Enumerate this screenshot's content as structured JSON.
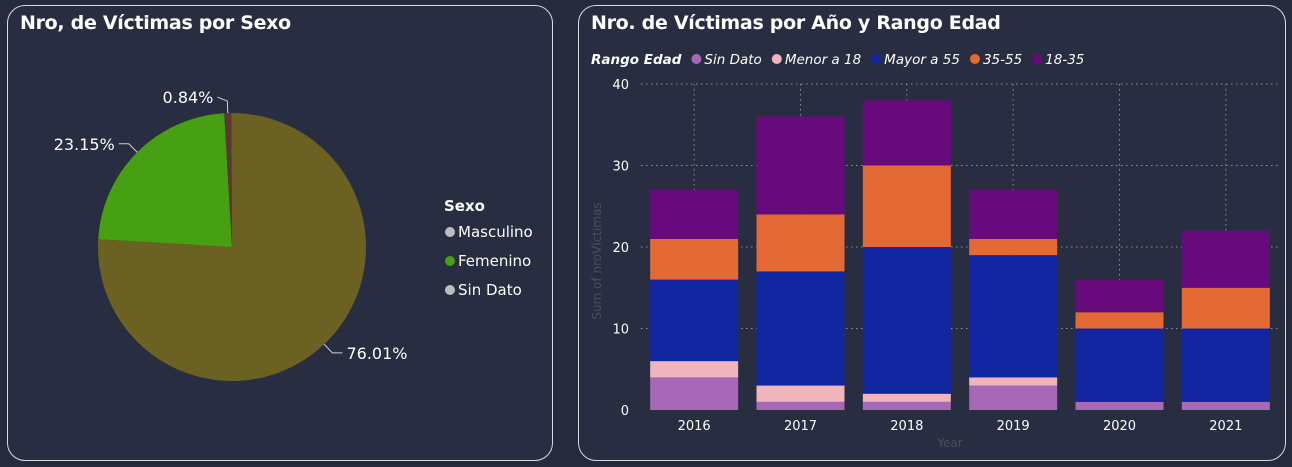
{
  "left_panel": {
    "title": "Nro, de Víctimas por Sexo"
  },
  "right_panel": {
    "title": "Nro. de Víctimas por Año y Rango Edad"
  },
  "colors": {
    "background": "#262a3c",
    "panel_border": "#d8dbe4",
    "masculino": "#6b6122",
    "femenino": "#46a012",
    "sin_dato_sexo": "#5a3a30",
    "sin_dato": "#a868b8",
    "menor_18": "#f0b4bc",
    "mayor_55": "#1326a2",
    "r35_55": "#e46a35",
    "r18_35": "#680a7c"
  },
  "chart_data": [
    {
      "type": "pie",
      "title": "Nro, de Víctimas por Sexo",
      "legend_title": "Sexo",
      "legend_position": "right",
      "slices": [
        {
          "label": "Masculino",
          "value": 76.01,
          "data_label": "76.01%",
          "color": "#6b6122",
          "legend_dot": "#bdbdbd"
        },
        {
          "label": "Femenino",
          "value": 23.15,
          "data_label": "23.15%",
          "color": "#46a012",
          "legend_dot": "#46a012"
        },
        {
          "label": "Sin Dato",
          "value": 0.84,
          "data_label": "0.84%",
          "color": "#5a3a30",
          "legend_dot": "#bdbdbd"
        }
      ]
    },
    {
      "type": "bar",
      "stacked": true,
      "title": "Nro. de Víctimas por Año y Rango Edad",
      "legend_title": "Rango Edad",
      "legend_position": "top-left",
      "xlabel": "Year",
      "ylabel": "Sum of nroVíctimas",
      "ylim": [
        0,
        40
      ],
      "yticks": [
        "0",
        "10",
        "20",
        "30",
        "40"
      ],
      "grid": true,
      "categories": [
        "2016",
        "2017",
        "2018",
        "2019",
        "2020",
        "2021"
      ],
      "series": [
        {
          "name": "Sin Dato",
          "color": "#a868b8",
          "values": [
            4,
            1,
            1,
            3,
            1,
            1
          ]
        },
        {
          "name": "Menor a 18",
          "color": "#f0b4bc",
          "values": [
            2,
            2,
            1,
            1,
            0,
            0
          ]
        },
        {
          "name": "Mayor a 55",
          "color": "#1326a2",
          "values": [
            10,
            14,
            18,
            15,
            9,
            9
          ]
        },
        {
          "name": "35-55",
          "color": "#e46a35",
          "values": [
            5,
            7,
            10,
            2,
            2,
            5
          ]
        },
        {
          "name": "18-35",
          "color": "#680a7c",
          "values": [
            6,
            12,
            8,
            6,
            4,
            7
          ]
        }
      ]
    }
  ]
}
